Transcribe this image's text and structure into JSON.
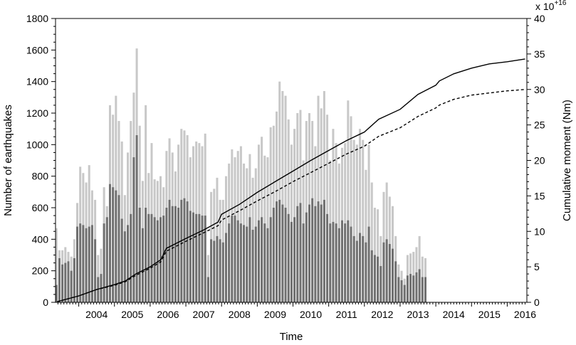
{
  "chart_data": {
    "type": "bar",
    "xlabel": "Time",
    "ylabel": "Number of earthquakes",
    "y2label": "Cumulative moment (Nm)",
    "y2_multiplier_label": "x 10",
    "y2_multiplier_exp": "+16",
    "ylim": [
      0,
      1800
    ],
    "y2lim": [
      0,
      40
    ],
    "yticks": [
      0,
      200,
      400,
      600,
      800,
      1000,
      1200,
      1400,
      1600,
      1800
    ],
    "y2ticks": [
      0,
      5,
      10,
      15,
      20,
      25,
      30,
      35,
      40
    ],
    "xlim": [
      2003.35,
      2016.55
    ],
    "year_labels": [
      "2004",
      "2005",
      "2006",
      "2007",
      "2008",
      "2009",
      "2010",
      "2011",
      "2012",
      "2013",
      "2014",
      "2015",
      "2016"
    ],
    "start_month": "2003-05",
    "colors": {
      "light_bars": "#c8c8c8",
      "dark_bars": "#707070",
      "lines": "#000000"
    },
    "series": [
      {
        "style": "light",
        "values": [
          470,
          330,
          330,
          350,
          320,
          290,
          400,
          630,
          860,
          820,
          760,
          870,
          710,
          650,
          300,
          340,
          730,
          610,
          1250,
          1190,
          1310,
          1150,
          1020,
          680,
          950,
          1150,
          1330,
          1610,
          1120,
          770,
          1250,
          820,
          1010,
          780,
          770,
          800,
          730,
          960,
          1040,
          950,
          830,
          1000,
          1100,
          1090,
          1060,
          920,
          990,
          1020,
          1010,
          990,
          1070,
          300,
          700,
          720,
          790,
          650,
          650,
          800,
          880,
          970,
          920,
          960,
          990,
          880,
          850,
          940,
          790,
          850,
          1000,
          1050,
          930,
          920,
          1110,
          1120,
          1210,
          1400,
          1340,
          1310,
          1160,
          1000,
          1100,
          1200,
          1220,
          900,
          1150,
          1200,
          1150,
          990,
          1310,
          1230,
          1340,
          1190,
          900,
          1100,
          1010,
          880,
          980,
          1010,
          1280,
          1180,
          1030,
          1000,
          1100,
          1030,
          840,
          1000,
          760,
          600,
          590,
          420,
          700,
          760,
          670,
          610,
          420,
          240,
          200,
          150,
          300,
          310,
          320,
          350,
          420,
          290,
          280
        ]
      },
      {
        "style": "dark",
        "values": [
          110,
          280,
          240,
          250,
          260,
          200,
          280,
          480,
          500,
          490,
          470,
          480,
          490,
          400,
          160,
          180,
          500,
          540,
          750,
          730,
          710,
          680,
          530,
          450,
          490,
          560,
          920,
          1060,
          600,
          470,
          600,
          560,
          560,
          540,
          520,
          540,
          550,
          600,
          650,
          610,
          610,
          600,
          650,
          660,
          640,
          580,
          570,
          560,
          560,
          550,
          550,
          160,
          400,
          390,
          420,
          400,
          380,
          440,
          500,
          550,
          550,
          520,
          500,
          490,
          480,
          540,
          460,
          480,
          520,
          540,
          500,
          470,
          540,
          600,
          640,
          650,
          620,
          600,
          560,
          510,
          540,
          610,
          630,
          500,
          570,
          620,
          660,
          610,
          640,
          620,
          650,
          560,
          500,
          510,
          500,
          470,
          520,
          500,
          520,
          480,
          420,
          390,
          440,
          420,
          380,
          480,
          330,
          300,
          290,
          230,
          380,
          400,
          370,
          340,
          260,
          160,
          140,
          110,
          170,
          180,
          170,
          190,
          210,
          160,
          160
        ]
      }
    ],
    "lines": [
      {
        "style": "solid",
        "points": [
          [
            2003.4,
            0.1
          ],
          [
            2004.0,
            0.9
          ],
          [
            2004.5,
            1.8
          ],
          [
            2005.0,
            2.5
          ],
          [
            2005.3,
            3.0
          ],
          [
            2005.6,
            4.0
          ],
          [
            2006.0,
            5.0
          ],
          [
            2006.3,
            6.0
          ],
          [
            2006.45,
            7.6
          ],
          [
            2007.0,
            9.0
          ],
          [
            2007.5,
            10.2
          ],
          [
            2007.9,
            11.3
          ],
          [
            2008.0,
            12.4
          ],
          [
            2008.5,
            13.8
          ],
          [
            2009.0,
            15.5
          ],
          [
            2009.5,
            17.0
          ],
          [
            2010.0,
            18.5
          ],
          [
            2010.5,
            20.0
          ],
          [
            2011.0,
            21.4
          ],
          [
            2011.5,
            22.8
          ],
          [
            2012.0,
            24.0
          ],
          [
            2012.4,
            25.8
          ],
          [
            2013.0,
            27.2
          ],
          [
            2013.5,
            29.3
          ],
          [
            2014.0,
            30.6
          ],
          [
            2014.1,
            31.2
          ],
          [
            2014.5,
            32.2
          ],
          [
            2015.0,
            33.0
          ],
          [
            2015.5,
            33.6
          ],
          [
            2016.0,
            33.9
          ],
          [
            2016.5,
            34.3
          ]
        ]
      },
      {
        "style": "dashed",
        "points": [
          [
            2003.4,
            0.1
          ],
          [
            2004.0,
            0.9
          ],
          [
            2004.5,
            1.8
          ],
          [
            2005.0,
            2.4
          ],
          [
            2005.3,
            2.9
          ],
          [
            2005.6,
            3.8
          ],
          [
            2006.0,
            4.8
          ],
          [
            2006.3,
            5.7
          ],
          [
            2006.45,
            7.2
          ],
          [
            2007.0,
            8.6
          ],
          [
            2007.5,
            9.8
          ],
          [
            2007.9,
            10.8
          ],
          [
            2008.0,
            11.6
          ],
          [
            2008.5,
            12.9
          ],
          [
            2009.0,
            14.3
          ],
          [
            2009.5,
            15.6
          ],
          [
            2010.0,
            17.0
          ],
          [
            2010.5,
            18.3
          ],
          [
            2011.0,
            19.6
          ],
          [
            2011.5,
            20.9
          ],
          [
            2012.0,
            22.0
          ],
          [
            2012.4,
            23.4
          ],
          [
            2013.0,
            24.6
          ],
          [
            2013.5,
            26.2
          ],
          [
            2014.0,
            27.4
          ],
          [
            2014.1,
            27.8
          ],
          [
            2014.5,
            28.6
          ],
          [
            2015.0,
            29.2
          ],
          [
            2015.5,
            29.5
          ],
          [
            2016.0,
            29.8
          ],
          [
            2016.5,
            30.0
          ]
        ]
      }
    ]
  }
}
